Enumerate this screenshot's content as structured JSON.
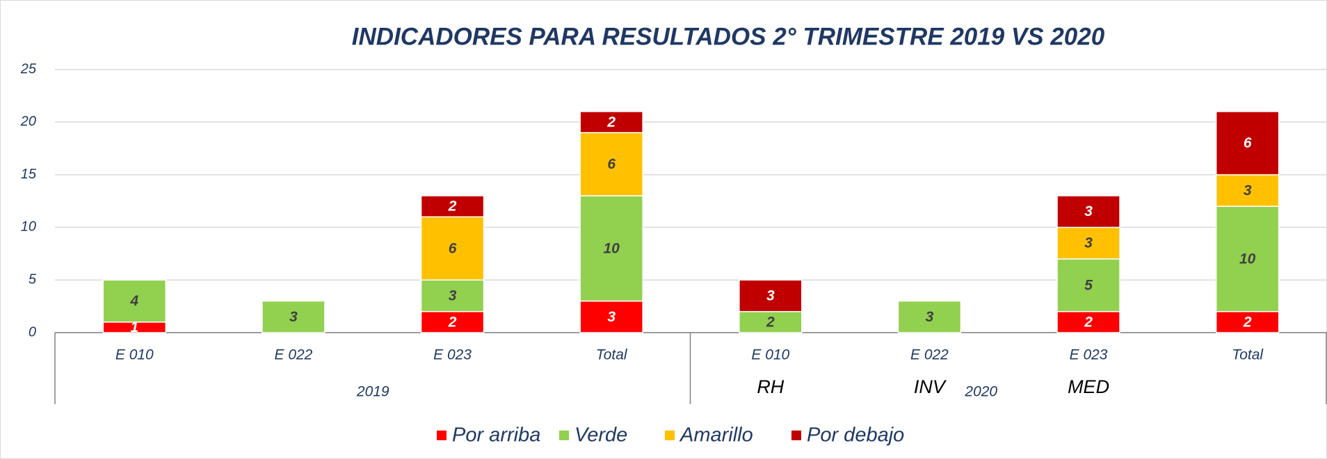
{
  "chart_data": {
    "type": "stacked_bar",
    "title": "INDICADORES PARA RESULTADOS 2° TRIMESTRE 2019 VS 2020",
    "categories": [
      "E 010",
      "E 022",
      "E 023",
      "Total",
      "E 010",
      "E 022",
      "E 023",
      "Total"
    ],
    "sub_labels": [
      null,
      null,
      null,
      null,
      "RH",
      "INV",
      "MED",
      null
    ],
    "groups": [
      {
        "label": "2019",
        "count": 4
      },
      {
        "label": "2020",
        "count": 4
      }
    ],
    "series": [
      {
        "name": "Por arriba",
        "color": "#ff0000",
        "label_color": "#ffffff",
        "values": [
          1,
          null,
          2,
          3,
          null,
          null,
          2,
          2
        ]
      },
      {
        "name": "Verde",
        "color": "#92d050",
        "label_color": "#404040",
        "values": [
          4,
          3,
          3,
          10,
          2,
          3,
          5,
          10
        ]
      },
      {
        "name": "Amarillo",
        "color": "#ffc000",
        "label_color": "#404040",
        "values": [
          null,
          null,
          6,
          6,
          null,
          null,
          3,
          3
        ]
      },
      {
        "name": "Por debajo",
        "color": "#c00000",
        "label_color": "#ffffff",
        "values": [
          null,
          null,
          2,
          2,
          3,
          null,
          3,
          6
        ]
      }
    ],
    "ylim": [
      0,
      25
    ],
    "yticks": [
      0,
      5,
      10,
      15,
      20,
      25
    ],
    "grid": true,
    "legend": "bottom"
  }
}
